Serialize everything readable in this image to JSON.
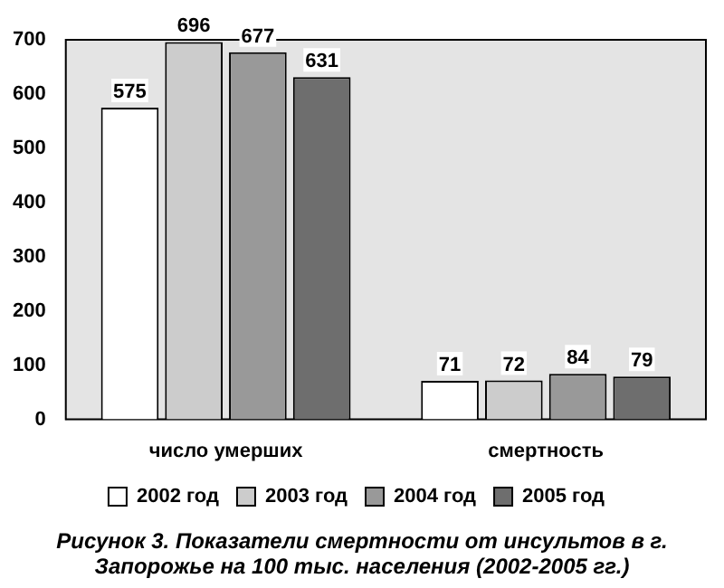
{
  "chart_data": {
    "type": "bar",
    "categories": [
      "число умерших",
      "смертность"
    ],
    "series": [
      {
        "name": "2002 год",
        "color": "#ffffff",
        "values": [
          575,
          71
        ]
      },
      {
        "name": "2003 год",
        "color": "#cccccc",
        "values": [
          696,
          72
        ]
      },
      {
        "name": "2004 год",
        "color": "#999999",
        "values": [
          677,
          84
        ]
      },
      {
        "name": "2005 год",
        "color": "#6e6e6e",
        "values": [
          631,
          79
        ]
      }
    ],
    "ylim": [
      0,
      700
    ],
    "yticks": [
      0,
      100,
      200,
      300,
      400,
      500,
      600,
      700
    ],
    "grid": false,
    "legend": "bottom",
    "data_labels": true,
    "annotations": [
      "Рисунок 3. Показатели смертности от инсультов в г. Запорожье на 100 тыс. населения (2002-2005 гг.)"
    ]
  }
}
